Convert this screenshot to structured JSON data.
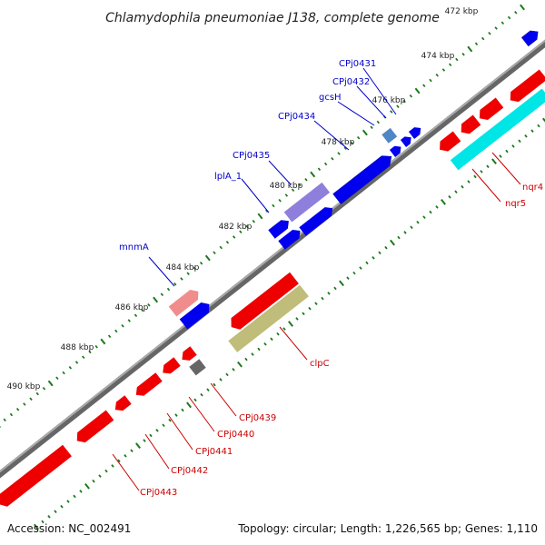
{
  "title": "Chlamydophila pneumoniae J138, complete genome",
  "footer": {
    "accession": "Accession: NC_002491",
    "summary": "Topology: circular; Length: 1,226,565 bp; Genes: 1,110"
  },
  "ticks": [
    {
      "label": "472 kbp"
    },
    {
      "label": "474 kbp"
    },
    {
      "label": "476 kbp"
    },
    {
      "label": "478 kbp"
    },
    {
      "label": "480 kbp"
    },
    {
      "label": "482 kbp"
    },
    {
      "label": "484 kbp"
    },
    {
      "label": "486 kbp"
    },
    {
      "label": "488 kbp"
    },
    {
      "label": "490 kbp"
    }
  ],
  "genes": {
    "CPj0431": "CPj0431",
    "CPj0432": "CPj0432",
    "gcsH": "gcsH",
    "CPj0434": "CPj0434",
    "CPj0435": "CPj0435",
    "lplA_1": "lplA_1",
    "mnmA": "mnmA",
    "nqr4": "nqr4",
    "nqr5": "nqr5",
    "clpC": "clpC",
    "CPj0439": "CPj0439",
    "CPj0440": "CPj0440",
    "CPj0441": "CPj0441",
    "CPj0442": "CPj0442",
    "CPj0443": "CPj0443"
  },
  "colors": {
    "forward_gene": "#0000ee",
    "reverse_gene": "#ee0000",
    "nqr_gene": "#00e5e5",
    "clpC_gene": "#b9b56a",
    "lplA_gene": "#7b68d6",
    "mnmA_gene": "#f08080",
    "gcsH_gene": "#4f86c6",
    "other_gene": "#666666",
    "tick_mark": "#1a7a1a",
    "backbone": "#888888",
    "forward_label": "#0000cc",
    "reverse_label": "#cc0000"
  }
}
